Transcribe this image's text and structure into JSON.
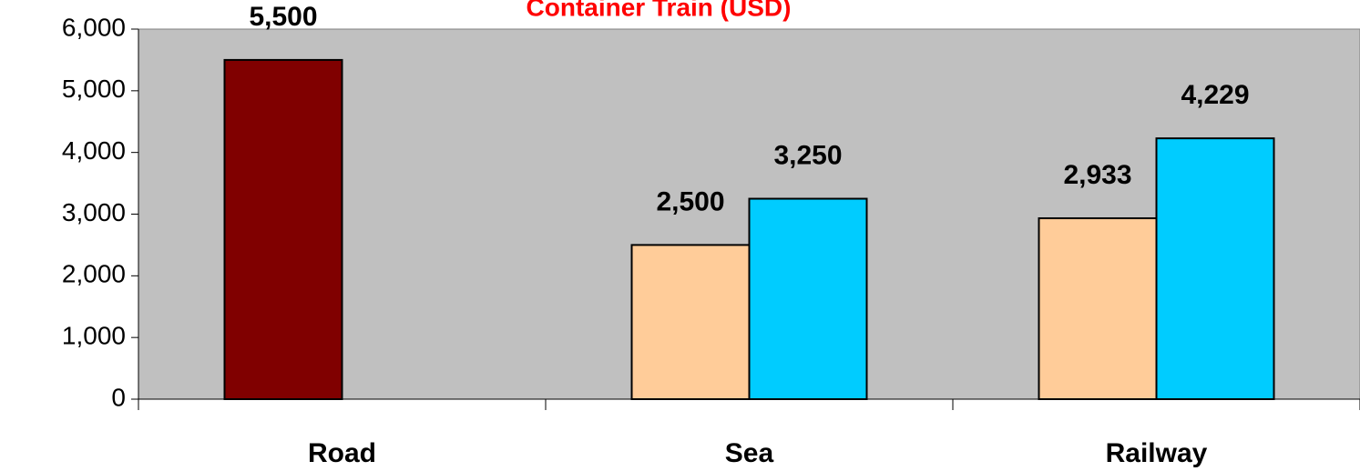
{
  "chart_data": {
    "type": "bar",
    "title": "Container Train  (USD)",
    "categories": [
      "Road",
      "Sea",
      "Railway"
    ],
    "series": [
      {
        "colors": [
          "#800000",
          "#ffcc99",
          "#ffcc99"
        ],
        "values": [
          5500,
          2500,
          2933
        ],
        "value_labels": [
          "5,500",
          "2,500",
          "2,933"
        ]
      },
      {
        "color": "#00ccff",
        "values": [
          null,
          3250,
          4229
        ],
        "value_labels": [
          null,
          "3,250",
          "4,229"
        ]
      }
    ],
    "ylim": [
      0,
      6000
    ],
    "yticks": [
      0,
      {
        "value": 1000,
        "label": "1,000"
      },
      {
        "value": 2000,
        "label": "2,000"
      },
      {
        "value": 3000,
        "label": "3,000"
      },
      {
        "value": 4000,
        "label": "4,000"
      },
      {
        "value": 5000,
        "label": "5,000"
      },
      {
        "value": 6000,
        "label": "6,000"
      }
    ],
    "background": "#c0c0c0"
  }
}
